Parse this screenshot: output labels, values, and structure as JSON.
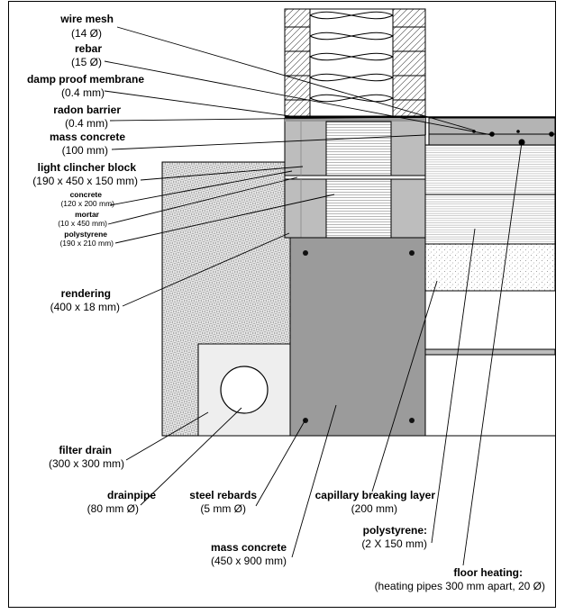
{
  "labels": {
    "wire_mesh": {
      "title": "wire mesh",
      "detail": "(14 Ø)"
    },
    "rebar": {
      "title": "rebar",
      "detail": "(15 Ø)"
    },
    "damp_proof_membrane": {
      "title": "damp proof membrane",
      "detail": "(0.4 mm)"
    },
    "radon_barrier": {
      "title": "radon barrier",
      "detail": "(0.4 mm)"
    },
    "mass_concrete_top": {
      "title": "mass concrete",
      "detail": "(100 mm)"
    },
    "light_clincher_block": {
      "title": "light clincher block",
      "detail": "(190 x 450 x 150 mm)"
    },
    "concrete": {
      "title": "concrete",
      "detail": "(120 x 200 mm)"
    },
    "mortar": {
      "title": "mortar",
      "detail": "(10 x 450 mm)"
    },
    "polystyrene_small": {
      "title": "polystyrene",
      "detail": "(190 x 210 mm)"
    },
    "rendering": {
      "title": "rendering",
      "detail": "(400 x 18 mm)"
    },
    "filter_drain": {
      "title": "filter drain",
      "detail": "(300 x 300 mm)"
    },
    "drainpipe": {
      "title": "drainpipe",
      "detail": "(80 mm Ø)"
    },
    "steel_rebards": {
      "title": "steel rebards",
      "detail": "(5 mm Ø)"
    },
    "capillary_breaking_layer": {
      "title": "capillary breaking layer",
      "detail": "(200 mm)"
    },
    "mass_concrete_foundation": {
      "title": "mass concrete",
      "detail": "(450 x 900 mm)"
    },
    "polystyrene_floor": {
      "title": "polystyrene:",
      "detail": "(2 X 150 mm)"
    },
    "floor_heating": {
      "title": "floor heating:",
      "detail": "(heating pipes 300 mm apart, 20 Ø)"
    }
  },
  "colors": {
    "concrete": "#b4b4b4",
    "foundation": "#9b9b9b",
    "outline": "#000000",
    "background": "#ffffff"
  }
}
